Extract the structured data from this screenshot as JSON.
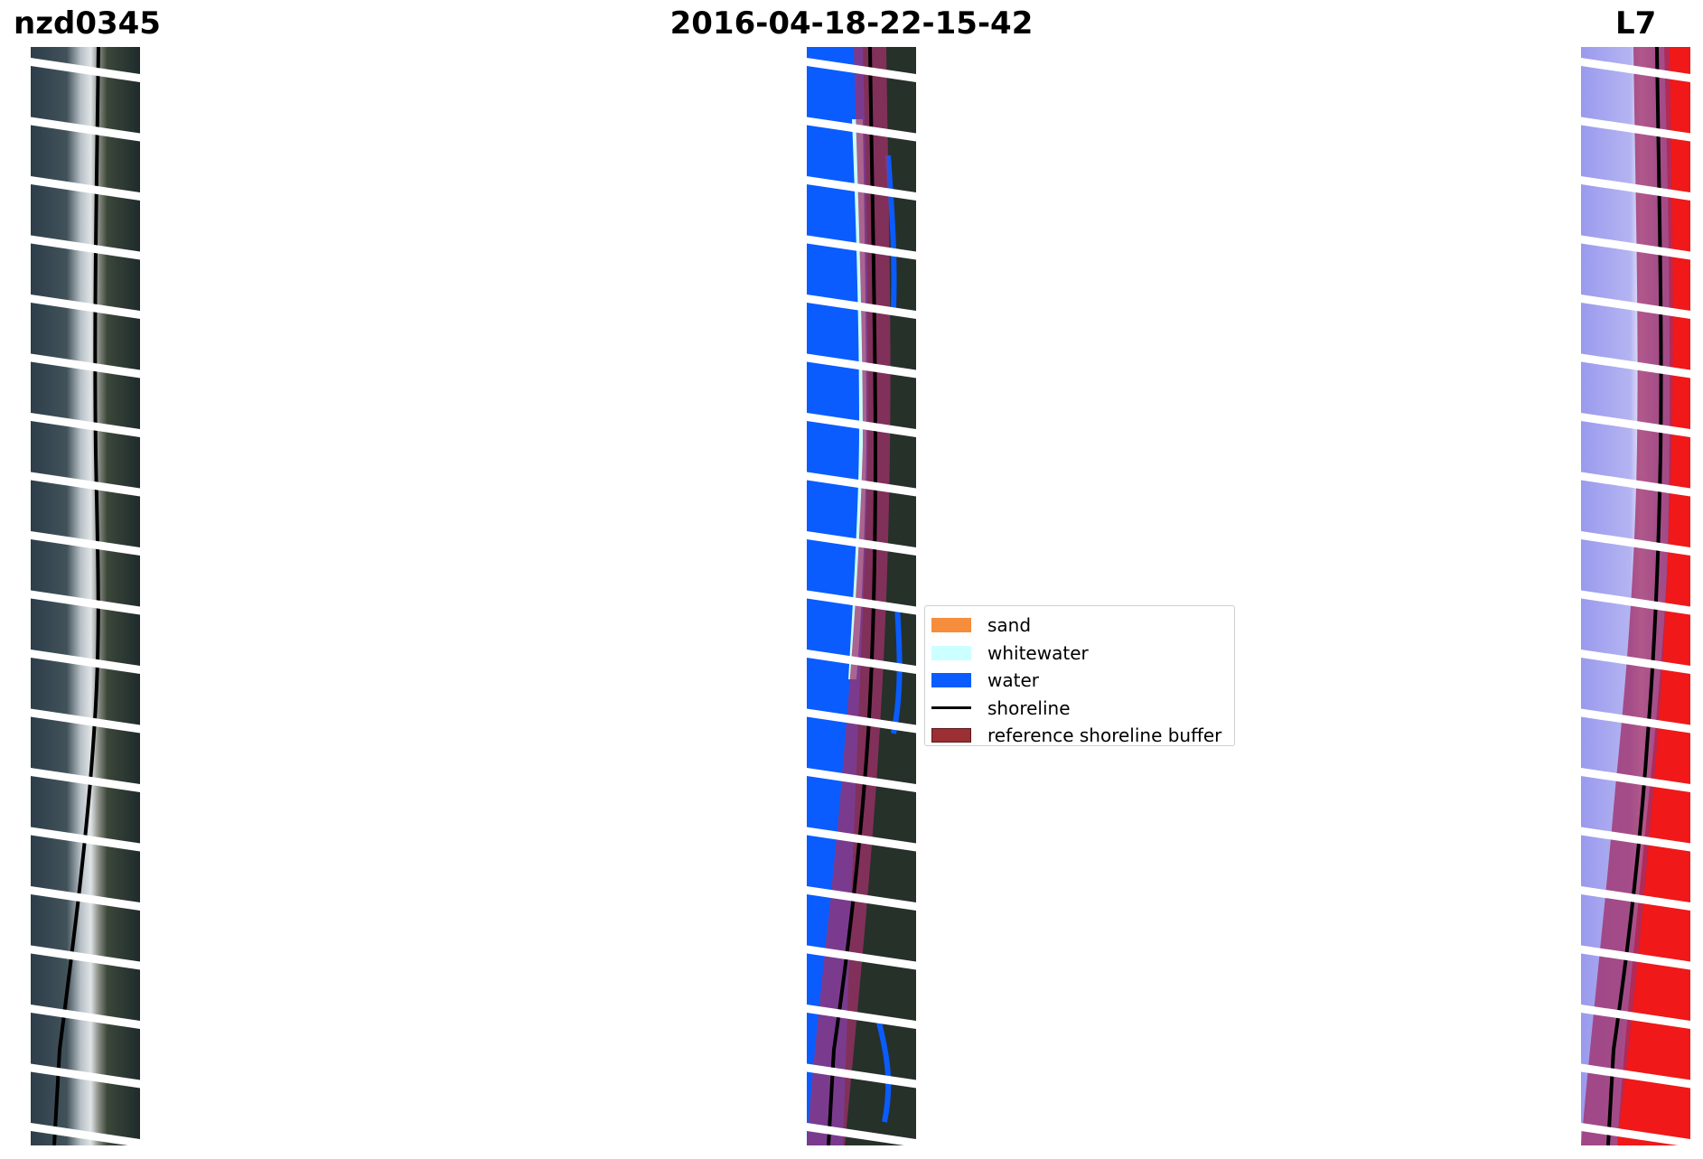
{
  "titles": {
    "site": "nzd0345",
    "date": "2016-04-18-22-15-42",
    "satellite": "L7"
  },
  "legend": {
    "items": [
      {
        "label": "sand",
        "color": "#f68d3c",
        "kind": "patch"
      },
      {
        "label": "whitewater",
        "color": "#ccffff",
        "kind": "patch"
      },
      {
        "label": "water",
        "color": "#0a5cff",
        "kind": "patch"
      },
      {
        "label": "shoreline",
        "color": "#000000",
        "kind": "line"
      },
      {
        "label": "reference shoreline buffer",
        "color": "#9b2f33",
        "kind": "patch"
      }
    ]
  },
  "colors": {
    "background": "#ffffff",
    "buffer_overlay": "#a0306a",
    "classified_water": "#0a5cff",
    "classified_whitewater": "#ccffff",
    "mndwi_water": "#8f8fe8",
    "mndwi_land": "#f01818"
  }
}
